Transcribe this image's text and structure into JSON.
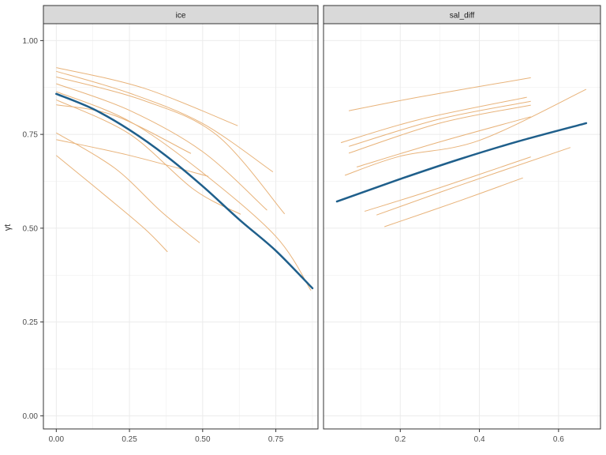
{
  "chart_data": {
    "type": "line",
    "ylabel": "γt",
    "y_ticks": [
      "0.00",
      "0.25",
      "0.50",
      "0.75",
      "1.00"
    ],
    "grid": true,
    "colors": {
      "individual": "#e8b37a",
      "mean": "#1f5f8b",
      "strip_fill": "#d9d9d9",
      "grid": "#ebebeb"
    },
    "panels": [
      {
        "strip": "ice",
        "xlim": [
          -0.044,
          0.894
        ],
        "ylim": [
          -0.035,
          1.045
        ],
        "x_ticks": [
          "0.00",
          "0.25",
          "0.50",
          "0.75"
        ],
        "x_tick_values": [
          0,
          0.25,
          0.5,
          0.75
        ],
        "mean_line": [
          [
            0.0,
            0.858
          ],
          [
            0.125,
            0.818
          ],
          [
            0.25,
            0.762
          ],
          [
            0.375,
            0.693
          ],
          [
            0.5,
            0.612
          ],
          [
            0.625,
            0.523
          ],
          [
            0.75,
            0.44
          ],
          [
            0.875,
            0.34
          ]
        ],
        "lines": [
          [
            [
              0.0,
              0.928
            ],
            [
              0.3,
              0.873
            ],
            [
              0.62,
              0.773
            ]
          ],
          [
            [
              0.0,
              0.918
            ],
            [
              0.25,
              0.86
            ],
            [
              0.5,
              0.779
            ],
            [
              0.74,
              0.65
            ]
          ],
          [
            [
              0.0,
              0.903
            ],
            [
              0.3,
              0.84
            ],
            [
              0.55,
              0.747
            ],
            [
              0.78,
              0.538
            ]
          ],
          [
            [
              0.0,
              0.885
            ],
            [
              0.25,
              0.814
            ],
            [
              0.5,
              0.704
            ],
            [
              0.72,
              0.548
            ]
          ],
          [
            [
              0.0,
              0.864
            ],
            [
              0.25,
              0.785
            ],
            [
              0.5,
              0.648
            ],
            [
              0.75,
              0.478
            ],
            [
              0.87,
              0.334
            ]
          ],
          [
            [
              0.0,
              0.829
            ],
            [
              0.2,
              0.8
            ],
            [
              0.46,
              0.699
            ]
          ],
          [
            [
              0.0,
              0.842
            ],
            [
              0.25,
              0.751
            ],
            [
              0.47,
              0.603
            ],
            [
              0.63,
              0.537
            ]
          ],
          [
            [
              0.0,
              0.736
            ],
            [
              0.25,
              0.694
            ],
            [
              0.52,
              0.638
            ]
          ],
          [
            [
              0.0,
              0.754
            ],
            [
              0.2,
              0.66
            ],
            [
              0.36,
              0.543
            ],
            [
              0.49,
              0.461
            ]
          ],
          [
            [
              0.0,
              0.694
            ],
            [
              0.15,
              0.598
            ],
            [
              0.3,
              0.5
            ],
            [
              0.38,
              0.437
            ]
          ]
        ]
      },
      {
        "strip": "sal_diff",
        "xlim": [
          0.006,
          0.706
        ],
        "ylim": [
          -0.035,
          1.045
        ],
        "x_ticks": [
          "0.2",
          "0.4",
          "0.6"
        ],
        "x_tick_values": [
          0.2,
          0.4,
          0.6
        ],
        "mean_line": [
          [
            0.04,
            0.571
          ],
          [
            0.2,
            0.631
          ],
          [
            0.35,
            0.684
          ],
          [
            0.5,
            0.732
          ],
          [
            0.67,
            0.78
          ]
        ],
        "lines": [
          [
            [
              0.07,
              0.813
            ],
            [
              0.25,
              0.85
            ],
            [
              0.53,
              0.901
            ]
          ],
          [
            [
              0.05,
              0.728
            ],
            [
              0.25,
              0.79
            ],
            [
              0.52,
              0.849
            ]
          ],
          [
            [
              0.07,
              0.718
            ],
            [
              0.3,
              0.791
            ],
            [
              0.53,
              0.838
            ]
          ],
          [
            [
              0.07,
              0.7
            ],
            [
              0.3,
              0.78
            ],
            [
              0.53,
              0.828
            ]
          ],
          [
            [
              0.09,
              0.663
            ],
            [
              0.3,
              0.73
            ],
            [
              0.53,
              0.797
            ]
          ],
          [
            [
              0.06,
              0.641
            ],
            [
              0.2,
              0.692
            ],
            [
              0.4,
              0.734
            ],
            [
              0.67,
              0.87
            ]
          ],
          [
            [
              0.11,
              0.545
            ],
            [
              0.3,
              0.608
            ],
            [
              0.53,
              0.69
            ]
          ],
          [
            [
              0.14,
              0.535
            ],
            [
              0.35,
              0.614
            ],
            [
              0.63,
              0.715
            ]
          ],
          [
            [
              0.16,
              0.504
            ],
            [
              0.35,
              0.573
            ],
            [
              0.51,
              0.634
            ]
          ]
        ]
      }
    ]
  }
}
